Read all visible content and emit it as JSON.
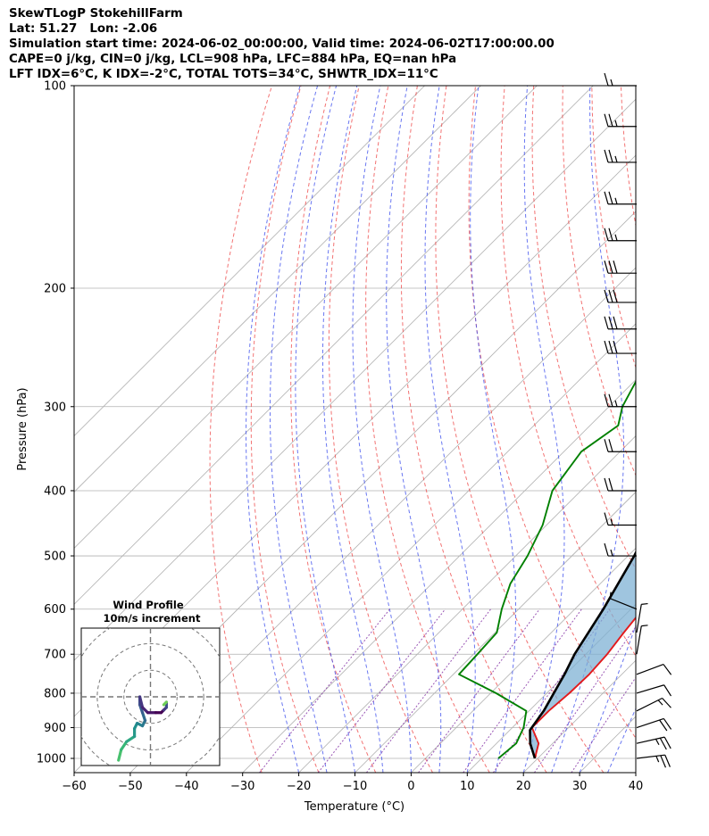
{
  "header": {
    "line1": "SkewTLogP StokehillFarm",
    "line2": "Lat: 51.27   Lon: -2.06",
    "line3": "Simulation start time: 2024-06-02_00:00:00, Valid time: 2024-06-02T17:00:00.00",
    "line4": "CAPE=0 j/kg, CIN=0 j/kg, LCL=908 hPa, LFC=884 hPa, EQ=nan hPa",
    "line5": "LFT IDX=6°C, K IDX=-2°C, TOTAL TOTS=34°C, SHWTR_IDX=11°C"
  },
  "chart_data": {
    "type": "line",
    "xlabel": "Temperature (°C)",
    "ylabel": "Pressure (hPa)",
    "xlim": [
      -60,
      40
    ],
    "ylim": [
      1050,
      100
    ],
    "yscale": "log",
    "grid": true,
    "x_ticks": [
      "−60",
      "−50",
      "−40",
      "−30",
      "−20",
      "−10",
      "0",
      "10",
      "20",
      "30",
      "40"
    ],
    "y_ticks": [
      "1000",
      "900",
      "800",
      "700",
      "600",
      "500",
      "400",
      "300",
      "200",
      "100"
    ],
    "series": [
      {
        "color": "#e31a1c",
        "points": [
          [
            19.5,
            1000
          ],
          [
            17.5,
            950
          ],
          [
            13.5,
            900
          ],
          [
            13.5,
            850
          ],
          [
            14,
            800
          ],
          [
            14.2,
            750
          ],
          [
            13.8,
            700
          ],
          [
            12.9,
            650
          ],
          [
            12.1,
            600
          ],
          [
            11.5,
            550
          ],
          [
            10.4,
            500
          ],
          [
            8.9,
            450
          ],
          [
            7.2,
            400
          ],
          [
            4.7,
            350
          ],
          [
            1.5,
            300
          ],
          [
            -4,
            250
          ],
          [
            -9.5,
            200
          ],
          [
            -13,
            180
          ],
          [
            -16,
            150
          ],
          [
            -17.6,
            130
          ],
          [
            -19.2,
            115
          ],
          [
            -20.6,
            100
          ]
        ]
      },
      {
        "color": "#008000",
        "points": [
          [
            13,
            1000
          ],
          [
            13.5,
            950
          ],
          [
            12,
            900
          ],
          [
            9.5,
            850
          ],
          [
            1,
            800
          ],
          [
            -9,
            750
          ],
          [
            -9.3,
            700
          ],
          [
            -9.7,
            650
          ],
          [
            -13,
            600
          ],
          [
            -16,
            550
          ],
          [
            -17.9,
            500
          ],
          [
            -20.7,
            450
          ],
          [
            -25.1,
            400
          ],
          [
            -26.9,
            350
          ],
          [
            -25,
            320
          ],
          [
            -27.6,
            300
          ],
          [
            -32,
            250
          ],
          [
            -38.1,
            200
          ],
          [
            -43.5,
            180
          ],
          [
            -53.2,
            150
          ],
          [
            -55,
            130
          ],
          [
            -56.3,
            115
          ],
          [
            -57.7,
            100
          ]
        ]
      },
      {
        "color": "#000000",
        "points": [
          [
            19.5,
            1000
          ],
          [
            16,
            950
          ],
          [
            13.6,
            908
          ],
          [
            12.6,
            850
          ],
          [
            9.8,
            750
          ],
          [
            8,
            700
          ],
          [
            5.1,
            600
          ],
          [
            1.1,
            500
          ],
          [
            -4.7,
            400
          ],
          [
            -13.9,
            300
          ],
          [
            -30,
            200
          ],
          [
            -43,
            150
          ],
          [
            -69,
            100
          ]
        ]
      }
    ],
    "wind_barbs_kt": [
      {
        "p": 1000,
        "u": 25,
        "v": 3
      },
      {
        "p": 950,
        "u": 22,
        "v": 5
      },
      {
        "p": 900,
        "u": 18,
        "v": 6
      },
      {
        "p": 850,
        "u": 12,
        "v": 6
      },
      {
        "p": 800,
        "u": 10,
        "v": 3
      },
      {
        "p": 750,
        "u": 8,
        "v": 3
      },
      {
        "p": 700,
        "u": 1,
        "v": 6
      },
      {
        "p": 650,
        "u": 1,
        "v": 6
      },
      {
        "p": 600,
        "u": -5,
        "v": 2
      },
      {
        "p": 500,
        "u": -15,
        "v": 0
      },
      {
        "p": 450,
        "u": -15,
        "v": 0
      },
      {
        "p": 400,
        "u": -20,
        "v": 0
      },
      {
        "p": 350,
        "u": -22,
        "v": 0
      },
      {
        "p": 300,
        "u": -25,
        "v": 0
      },
      {
        "p": 250,
        "u": -30,
        "v": 0
      },
      {
        "p": 230,
        "u": -30,
        "v": 0
      },
      {
        "p": 210,
        "u": -30,
        "v": 0
      },
      {
        "p": 190,
        "u": -30,
        "v": 0
      },
      {
        "p": 170,
        "u": -25,
        "v": 0
      },
      {
        "p": 150,
        "u": -25,
        "v": 0
      },
      {
        "p": 130,
        "u": -25,
        "v": 0
      },
      {
        "p": 115,
        "u": -25,
        "v": 0
      },
      {
        "p": 100,
        "u": -15,
        "v": 0
      }
    ],
    "hodograph": {
      "title_line1": "Wind Profile",
      "title_line2": "10m/s increment",
      "xlim": [
        -26,
        26
      ],
      "ylim": [
        -26,
        26
      ],
      "ring_step": 10,
      "points": [
        [
          -12,
          -24
        ],
        [
          -11,
          -20
        ],
        [
          -9,
          -17
        ],
        [
          -6,
          -15
        ],
        [
          -6,
          -12
        ],
        [
          -5,
          -10
        ],
        [
          -3,
          -11
        ],
        [
          -2,
          -9
        ],
        [
          -3,
          -6
        ],
        [
          -4,
          -3
        ],
        [
          -4,
          0
        ],
        [
          -3,
          -4
        ],
        [
          -1,
          -6
        ],
        [
          2,
          -6
        ],
        [
          4,
          -6
        ],
        [
          5,
          -5
        ],
        [
          6,
          -4
        ],
        [
          6,
          -2
        ],
        [
          5,
          -3
        ]
      ]
    }
  }
}
